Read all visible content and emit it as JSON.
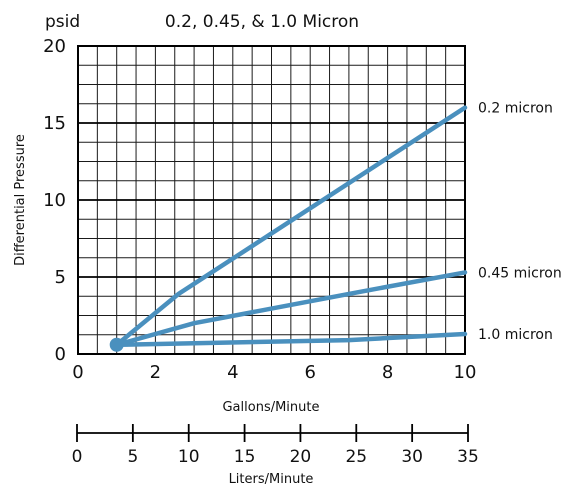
{
  "chart_data": {
    "type": "line",
    "title": "0.2, 0.45, & 1.0 Micron",
    "y_unit": "psid",
    "ylabel": "Differential Pressure",
    "xlabel": "Gallons/Minute",
    "x2label": "Liters/Minute",
    "xlim": [
      0,
      10
    ],
    "ylim": [
      0,
      20
    ],
    "x2lim": [
      0,
      35
    ],
    "x_ticks": [
      0,
      2,
      4,
      6,
      8,
      10
    ],
    "y_ticks": [
      0,
      5,
      10,
      15,
      20
    ],
    "x2_ticks": [
      0,
      5,
      10,
      15,
      20,
      25,
      30,
      35
    ],
    "grid": true,
    "line_color": "#4a90be",
    "series": [
      {
        "name": "0.2 micron",
        "points": [
          [
            1,
            0.6
          ],
          [
            2.6,
            3.9
          ],
          [
            10,
            16.0
          ]
        ]
      },
      {
        "name": "0.45 micron",
        "points": [
          [
            1,
            0.6
          ],
          [
            3.0,
            2.0
          ],
          [
            7.0,
            3.9
          ],
          [
            10,
            5.3
          ]
        ]
      },
      {
        "name": "1.0 micron",
        "points": [
          [
            1,
            0.6
          ],
          [
            7.0,
            0.9
          ],
          [
            10,
            1.3
          ]
        ]
      }
    ]
  }
}
